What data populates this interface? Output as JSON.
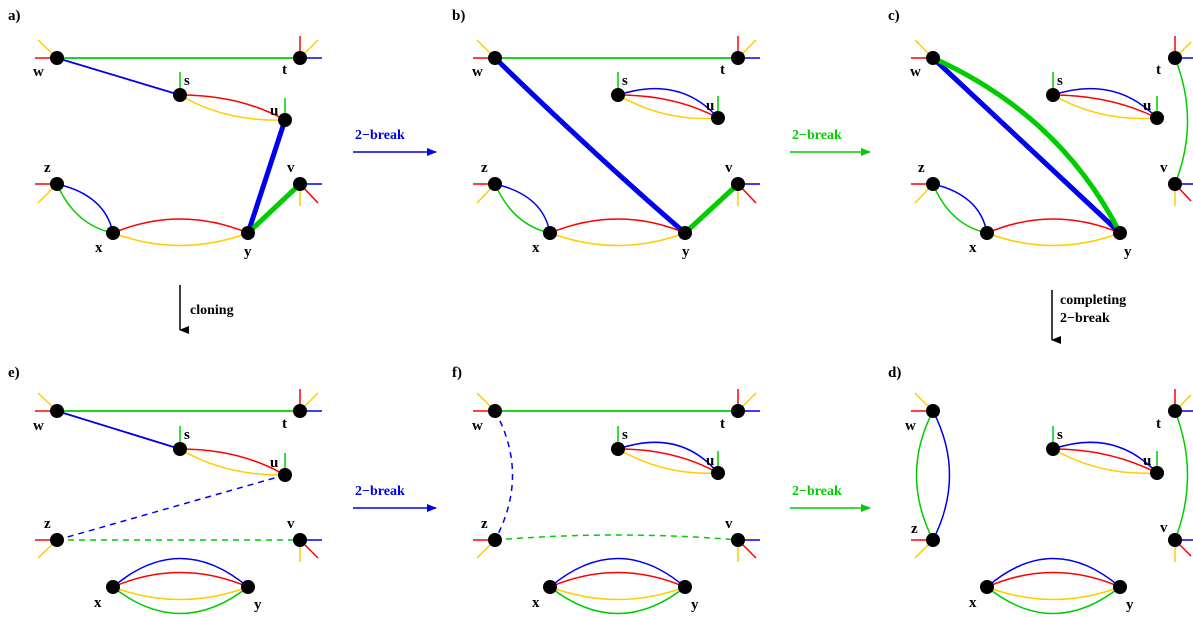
{
  "colors": {
    "red": "#ff0000",
    "blue": "#0000ee",
    "green": "#00cc00",
    "yellow": "#ffcc00",
    "black": "#000000"
  },
  "panels": {
    "a": {
      "label": "a)"
    },
    "b": {
      "label": "b)"
    },
    "c": {
      "label": "c)"
    },
    "d": {
      "label": "d)"
    },
    "e": {
      "label": "e)"
    },
    "f": {
      "label": "f)"
    }
  },
  "operations": {
    "a_to_b": {
      "label": "2−break",
      "color": "#0000ee"
    },
    "b_to_c": {
      "label": "2−break",
      "color": "#00cc00"
    },
    "a_to_e": {
      "label": "cloning"
    },
    "c_to_d": {
      "label_line1": "completing",
      "label_line2": "2−break"
    },
    "e_to_f": {
      "label": "2−break",
      "color": "#0000ee"
    },
    "f_to_d": {
      "label": "2−break",
      "color": "#00cc00"
    }
  },
  "vertex_names": [
    "w",
    "t",
    "s",
    "u",
    "z",
    "v",
    "x",
    "y"
  ]
}
